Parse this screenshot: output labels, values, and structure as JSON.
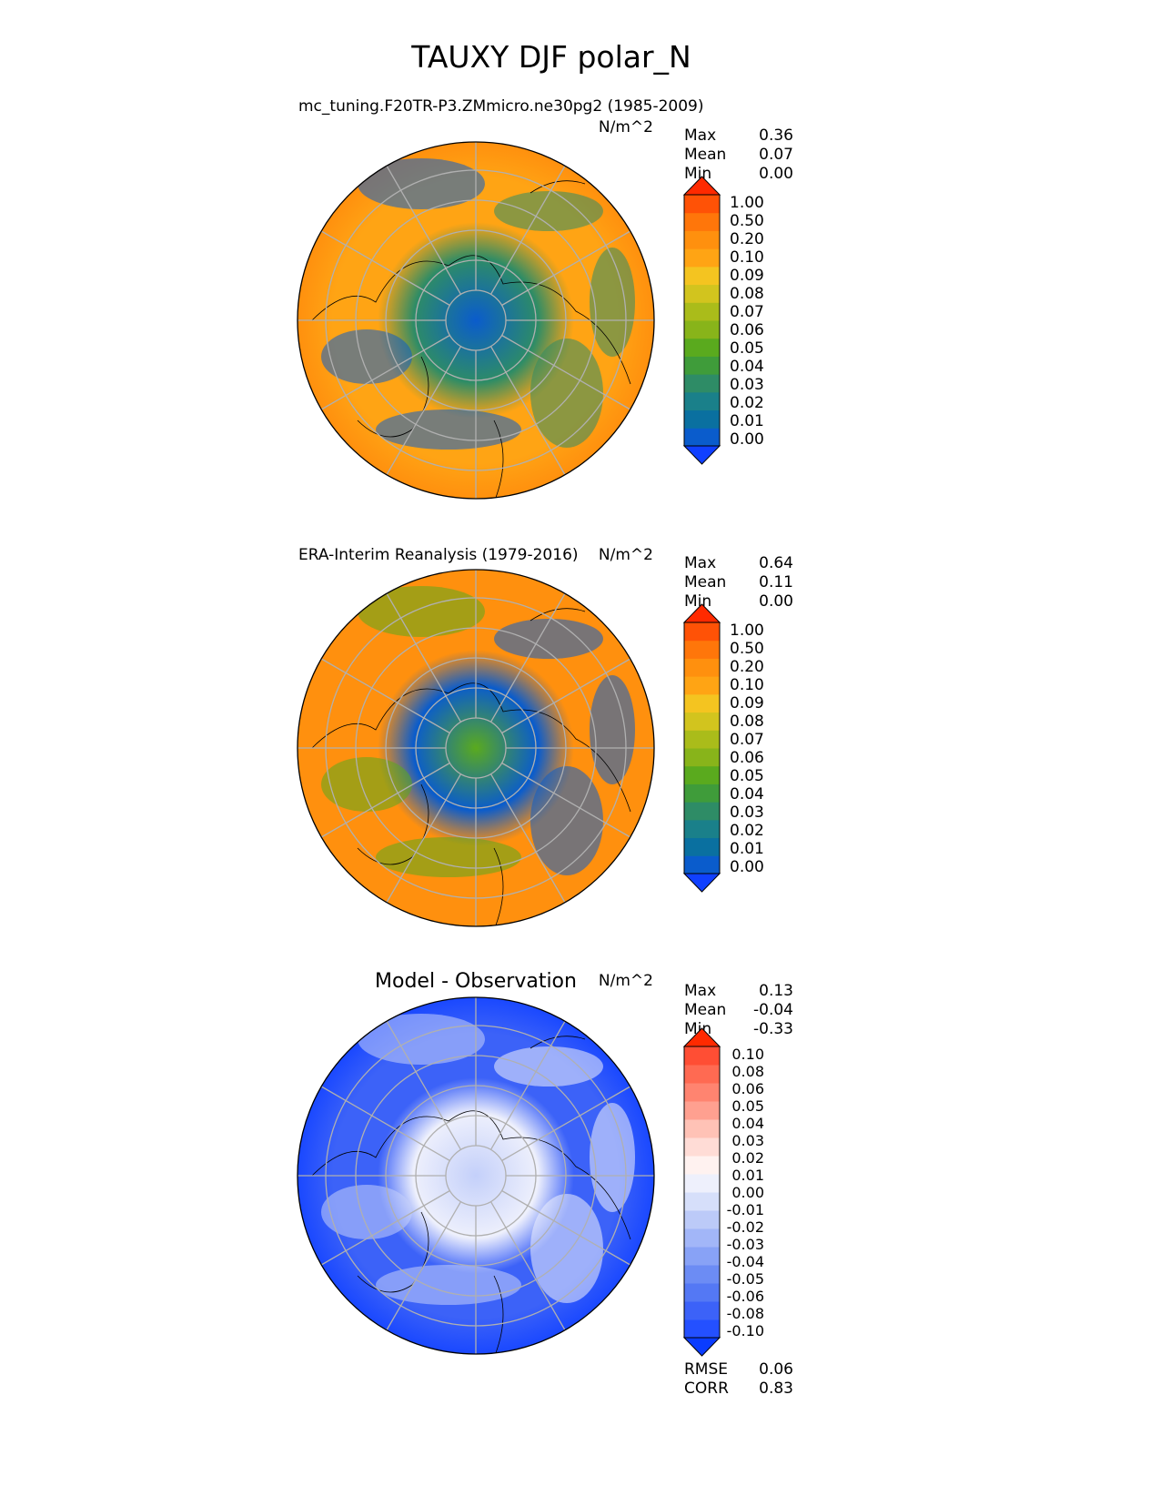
{
  "title": "TAUXY DJF polar_N",
  "chart_data": [
    {
      "type": "heatmap",
      "projection": "north polar stereographic",
      "title": "mc_tuning.F20TR-P3.ZMmicro.ne30pg2 (1985-2009)",
      "units": "N/m^2",
      "stats": [
        {
          "label": "Max",
          "value": "0.36"
        },
        {
          "label": "Mean",
          "value": "0.07"
        },
        {
          "label": "Min",
          "value": "0.00"
        }
      ],
      "colorbar": {
        "levels": [
          "0.00",
          "0.01",
          "0.02",
          "0.03",
          "0.04",
          "0.05",
          "0.06",
          "0.07",
          "0.08",
          "0.09",
          "0.10",
          "0.20",
          "0.50",
          "1.00"
        ],
        "colors": [
          "#1040ff",
          "#0a5ccc",
          "#0a70a0",
          "#1a808a",
          "#2e8c66",
          "#3f9c3a",
          "#5aaa1e",
          "#88b41a",
          "#aabc1a",
          "#d2c41e",
          "#f4c420",
          "#ffa414",
          "#ff900e",
          "#ff760a",
          "#ff5206",
          "#ff2a00"
        ]
      },
      "field_palette": {
        "center": "#0a5ccc",
        "mid": "#2e8c66",
        "ring": "#ffa414",
        "outer": "#ff900e"
      }
    },
    {
      "type": "heatmap",
      "projection": "north polar stereographic",
      "title": "ERA-Interim Reanalysis (1979-2016)",
      "units": "N/m^2",
      "stats": [
        {
          "label": "Max",
          "value": "0.64"
        },
        {
          "label": "Mean",
          "value": "0.11"
        },
        {
          "label": "Min",
          "value": "0.00"
        }
      ],
      "colorbar": {
        "levels": [
          "0.00",
          "0.01",
          "0.02",
          "0.03",
          "0.04",
          "0.05",
          "0.06",
          "0.07",
          "0.08",
          "0.09",
          "0.10",
          "0.20",
          "0.50",
          "1.00"
        ],
        "colors": [
          "#1040ff",
          "#0a5ccc",
          "#0a70a0",
          "#1a808a",
          "#2e8c66",
          "#3f9c3a",
          "#5aaa1e",
          "#88b41a",
          "#aabc1a",
          "#d2c41e",
          "#f4c420",
          "#ffa414",
          "#ff900e",
          "#ff760a",
          "#ff5206",
          "#ff2a00"
        ]
      },
      "field_palette": {
        "center": "#5aaa1e",
        "mid": "#0a5ccc",
        "ring": "#ff900e",
        "outer": "#ff900e"
      }
    },
    {
      "type": "heatmap",
      "projection": "north polar stereographic",
      "title": "Model - Observation",
      "units": "N/m^2",
      "stats": [
        {
          "label": "Max",
          "value": "0.13"
        },
        {
          "label": "Mean",
          "value": "-0.04"
        },
        {
          "label": "Min",
          "value": "-0.33"
        }
      ],
      "metrics": [
        {
          "label": "RMSE",
          "value": "0.06"
        },
        {
          "label": "CORR",
          "value": "0.83"
        }
      ],
      "colorbar": {
        "levels": [
          "-0.10",
          "-0.08",
          "-0.06",
          "-0.05",
          "-0.04",
          "-0.03",
          "-0.02",
          "-0.01",
          "0.00",
          "0.01",
          "0.02",
          "0.03",
          "0.04",
          "0.05",
          "0.06",
          "0.08",
          "0.10"
        ],
        "colors": [
          "#0a3cff",
          "#2450ff",
          "#3c62f8",
          "#5478f4",
          "#6c8cf4",
          "#88a2f6",
          "#a2b6f8",
          "#bccaf8",
          "#d6dffa",
          "#eef0fc",
          "#fff2f0",
          "#ffdcd6",
          "#ffc2b6",
          "#ffa090",
          "#ff8470",
          "#ff6a52",
          "#ff4e34",
          "#ff2a00"
        ]
      },
      "field_palette": {
        "center": "#c4d0fa",
        "mid": "#eef0fc",
        "ring": "#3c62f8",
        "outer": "#1a48ff"
      }
    }
  ]
}
